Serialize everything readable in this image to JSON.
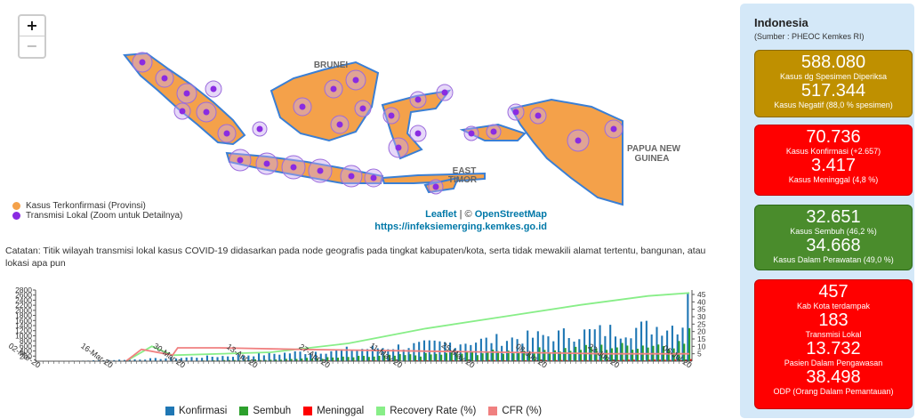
{
  "map": {
    "zoom_in": "+",
    "zoom_out": "−",
    "labels": {
      "brunei": "BRUNEI",
      "papua": "PAPUA NEW",
      "guinea": "GUINEA",
      "east": "EAST",
      "timor": "TIMOR"
    },
    "legend": {
      "province": "Kasus Terkonfirmasi (Provinsi)",
      "local": "Transmisi Lokal (Zoom untuk Detailnya)"
    },
    "attribution": {
      "leaflet": "Leaflet",
      "sep": " | © ",
      "osm": "OpenStreetMap",
      "url": "https://infeksiemerging.kemkes.go.id"
    },
    "colors": {
      "land": "#f4a14a",
      "border": "#3a7fd5",
      "dot": "#8a2be2",
      "halo": "#c8a8f0"
    }
  },
  "note": "Catatan: Titik wilayah transmisi lokal kasus COVID-19 didasarkan pada node geografis pada tingkat kabupaten/kota, serta tidak mewakili alamat tertentu, bangunan, atau lokasi apa pun",
  "chart_data": {
    "type": "bar",
    "x_tick_labels": [
      "02-Mar-20",
      "16-Mar-20",
      "30-Mar-20",
      "13-Apr-20",
      "27-Apr-20",
      "11-May-20",
      "25-May-20",
      "08-Jun-20",
      "22-Jun-20",
      "06-Jul-20"
    ],
    "y_left_ticks": [
      200,
      400,
      600,
      800,
      1000,
      1200,
      1400,
      1600,
      1800,
      2000,
      2200,
      2400,
      2600,
      2800
    ],
    "y_right_ticks": [
      5,
      10,
      15,
      20,
      25,
      30,
      35,
      40,
      45
    ],
    "y_left_range": [
      0,
      2800
    ],
    "y_right_range": [
      0,
      48
    ],
    "days": 127,
    "series": [
      {
        "name": "Konfirmasi",
        "color": "#1f77b4",
        "start_day": 0,
        "end_day": 126,
        "start_value": 2,
        "end_value": 2657,
        "shape": "rising"
      },
      {
        "name": "Sembuh",
        "color": "#2ca02c",
        "start_day": 20,
        "end_day": 126,
        "start_value": 0,
        "end_value": 1300,
        "shape": "rising"
      },
      {
        "name": "Meninggal",
        "color": "#ff0000",
        "start_day": 14,
        "end_day": 126,
        "start_value": 5,
        "end_value": 80,
        "shape": "flat"
      },
      {
        "name": "Recovery Rate (%)",
        "color": "#88ee88",
        "points": [
          [
            17,
            0
          ],
          [
            22,
            10
          ],
          [
            26,
            4
          ],
          [
            45,
            6
          ],
          [
            60,
            12
          ],
          [
            75,
            22
          ],
          [
            90,
            30
          ],
          [
            105,
            38
          ],
          [
            118,
            44
          ],
          [
            126,
            46
          ]
        ]
      },
      {
        "name": "CFR (%)",
        "color": "#f08080",
        "points": [
          [
            17,
            0
          ],
          [
            20,
            8
          ],
          [
            26,
            4
          ],
          [
            27,
            9
          ],
          [
            35,
            9
          ],
          [
            50,
            8
          ],
          [
            70,
            7
          ],
          [
            90,
            6
          ],
          [
            110,
            5
          ],
          [
            126,
            5
          ]
        ]
      }
    ]
  },
  "panel": {
    "title": "Indonesia",
    "source": "(Sumber : PHEOC Kemkes RI)",
    "cards": [
      [
        {
          "v": "588.080",
          "l": "Kasus dg Spesimen Diperiksa"
        },
        {
          "v": "517.344",
          "l": "Kasus Negatif (88,0 % spesimen)"
        }
      ],
      [
        {
          "v": "70.736",
          "l": "Kasus Konfirmasi (+2.657)"
        },
        {
          "v": "3.417",
          "l": "Kasus Meninggal (4,8 %)"
        }
      ],
      [
        {
          "v": "32.651",
          "l": "Kasus Sembuh (46,2 %)"
        },
        {
          "v": "34.668",
          "l": "Kasus Dalam Perawatan (49,0 %)"
        }
      ],
      [
        {
          "v": "457",
          "l": "Kab Kota terdampak"
        },
        {
          "v": "183",
          "l": "Transmisi Lokal"
        },
        {
          "v": "13.732",
          "l": "Pasien Dalam Pengawasan"
        },
        {
          "v": "38.498",
          "l": "ODP (Orang Dalam Pemantauan)"
        }
      ]
    ]
  }
}
